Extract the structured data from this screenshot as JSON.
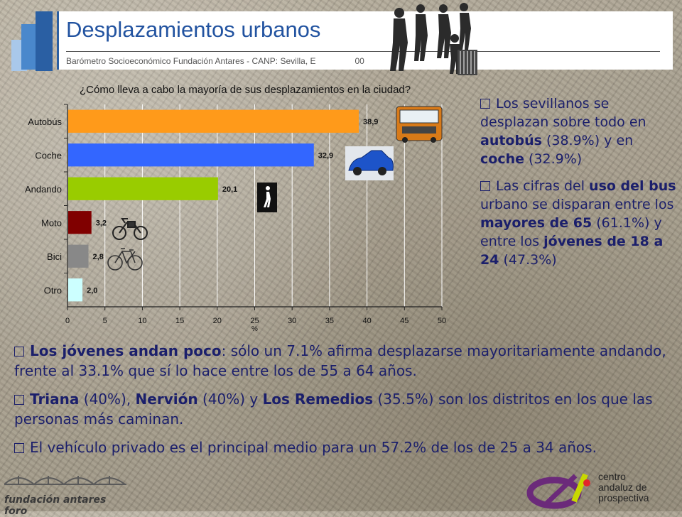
{
  "header": {
    "title": "Desplazamientos urbanos",
    "subtitle": "Barómetro Socioeconómico Fundación Antares - CANP: Sevilla, E",
    "subtitle_tail": "00"
  },
  "chart_data": {
    "type": "bar",
    "orientation": "horizontal",
    "title": "¿Cómo lleva a cabo la mayoría de sus desplazamientos en la ciudad?",
    "xlabel": "%",
    "ylabel": "",
    "categories": [
      "Autobús",
      "Coche",
      "Andando",
      "Moto",
      "Bici",
      "Otro"
    ],
    "values": [
      38.9,
      32.9,
      20.1,
      3.2,
      2.8,
      2.0
    ],
    "value_labels": [
      "38,9",
      "32,9",
      "20,1",
      "3,2",
      "2,8",
      "2,0"
    ],
    "colors": [
      "#ff9a1a",
      "#3366ff",
      "#99cc00",
      "#800000",
      "#888888",
      "#ccffff"
    ],
    "xlim": [
      0,
      50
    ],
    "xticks": [
      "0",
      "5",
      "10",
      "15",
      "20",
      "25",
      "30",
      "35",
      "40",
      "45",
      "50"
    ],
    "grid": true,
    "legend": "none"
  },
  "side": {
    "p1": [
      "Los sevillanos se desplazan sobre todo en ",
      "autobús",
      " (38.9%) y en ",
      "coche",
      " (32.9%)"
    ],
    "p2": [
      "Las cifras del ",
      "uso del bus",
      " urbano se disparan entre los ",
      "mayores de 65",
      " (61.1%) y entre los ",
      "jóvenes de 18 a 24",
      " (47.3%)"
    ]
  },
  "bottom": {
    "p1": [
      "Los jóvenes andan poco",
      ": sólo un 7.1% afirma desplazarse mayoritariamente andando, frente al 33.1% que sí lo hace entre los de 55 a 64 años."
    ],
    "p2": [
      "Triana",
      " (40%), ",
      "Nervión",
      " (40%) y ",
      "Los Remedios",
      " (35.5%) son los distritos en los que las personas más caminan."
    ],
    "p3": [
      "El vehículo privado es el principal medio para un 57.2% de los de 25 a 34 años."
    ]
  },
  "footer": {
    "foundation_name": "fundación antares foro",
    "centro_lines": [
      "centro",
      "andaluz de",
      "prospectiva"
    ]
  },
  "colors": {
    "brand_blue": "#2253a0",
    "text_navy": "#1b1f6b"
  }
}
